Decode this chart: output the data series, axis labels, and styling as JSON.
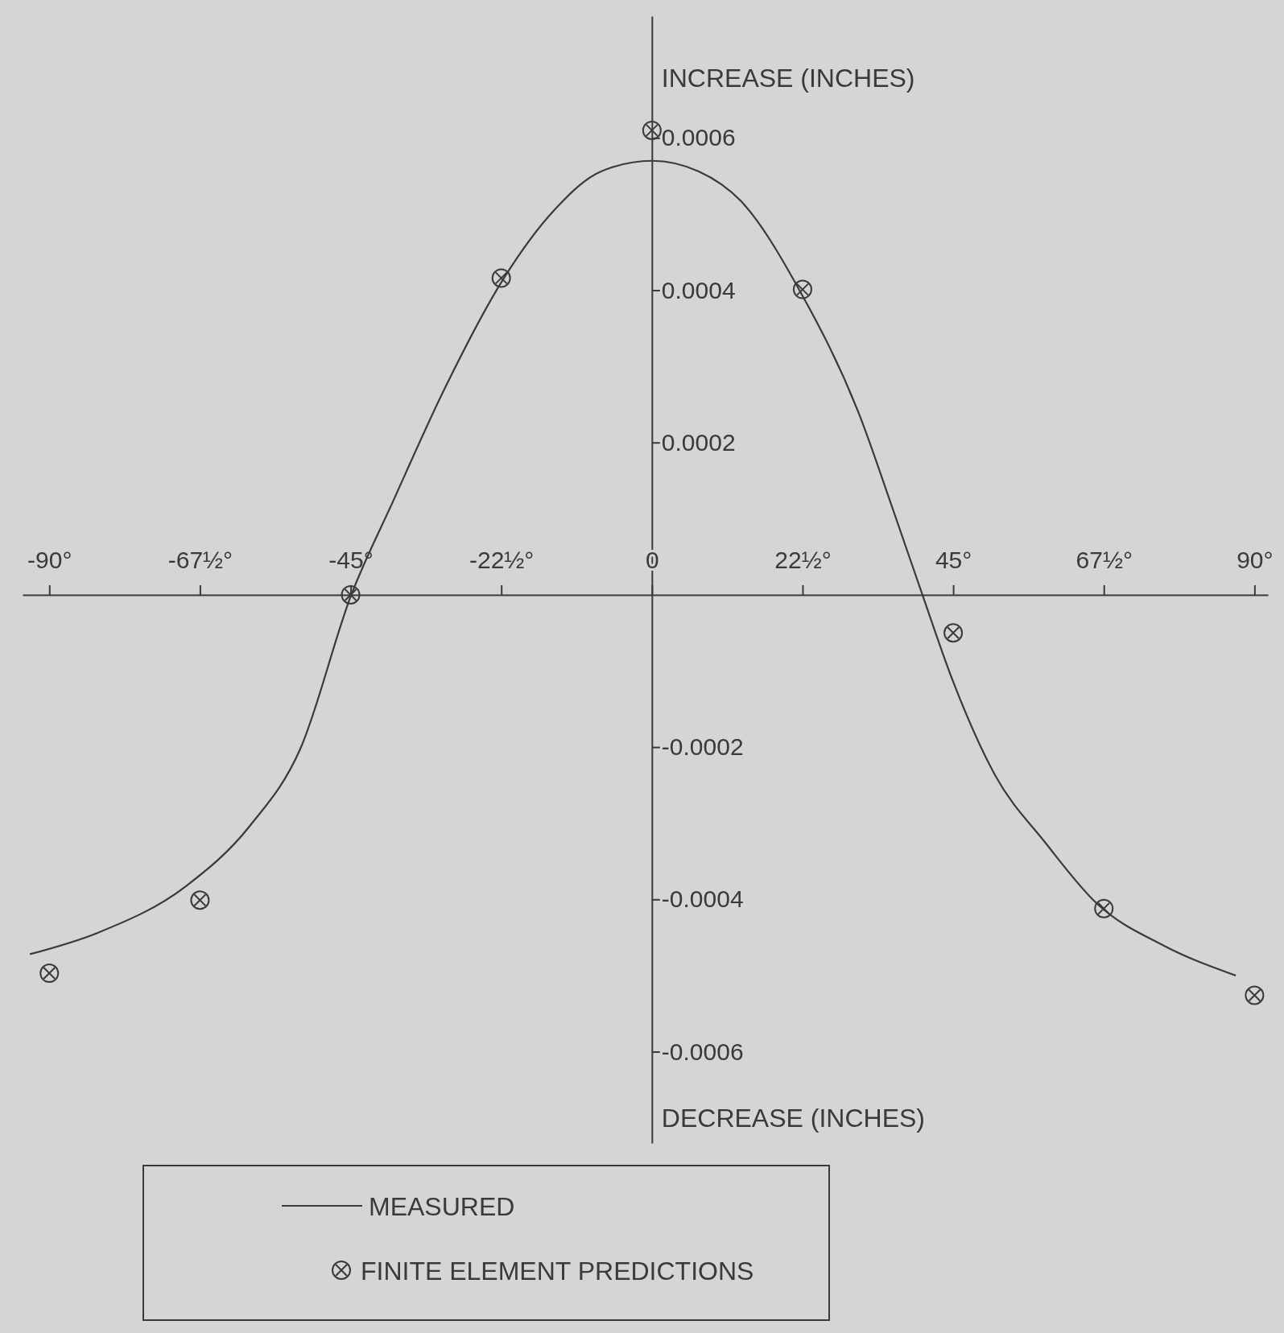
{
  "chart_data": {
    "type": "line",
    "ylabel": "INCREASE (INCHES)",
    "annotations": [
      "DECREASE (INCHES)"
    ],
    "xlim": [
      -94,
      92
    ],
    "ylim": [
      -0.00072,
      0.00076
    ],
    "xticks": [
      {
        "value": -90,
        "label": "-90°"
      },
      {
        "value": -67.5,
        "label": "-67½°"
      },
      {
        "value": -45,
        "label": "-45°"
      },
      {
        "value": -22.5,
        "label": "-22½°"
      },
      {
        "value": 0,
        "label": "0"
      },
      {
        "value": 22.5,
        "label": "22½°"
      },
      {
        "value": 45,
        "label": "45°"
      },
      {
        "value": 67.5,
        "label": "67½°"
      },
      {
        "value": 90,
        "label": "90°"
      }
    ],
    "yticks": [
      {
        "value": -0.0006,
        "label": "-0.0006"
      },
      {
        "value": -0.0004,
        "label": "-0.0004"
      },
      {
        "value": -0.0002,
        "label": "-0.0002"
      },
      {
        "value": 0.0002,
        "label": "0.0002"
      },
      {
        "value": 0.0004,
        "label": "0.0004"
      },
      {
        "value": 0.0006,
        "label": "0.0006"
      }
    ],
    "legend": "bottom",
    "series": [
      {
        "name": "MEASURED",
        "color": "#3a3a3a",
        "marker": "none",
        "line_style": "solid",
        "x": [
          -92.9,
          -82.8,
          -69.5,
          -60,
          -52.5,
          -44.9,
          -38.6,
          -31,
          -22.1,
          -14.5,
          -7.6,
          0,
          7,
          13.3,
          22.1,
          31,
          36,
          40.4,
          44.9,
          51.2,
          58.8,
          66.4,
          76.5,
          87.2
        ],
        "values": [
          -0.000472,
          -0.000444,
          -0.000382,
          -0.000303,
          -0.000202,
          0,
          0.000124,
          0.00027,
          0.000416,
          0.000506,
          0.000556,
          0.00057,
          0.000556,
          0.000517,
          0.000399,
          0.000236,
          0.000112,
          0,
          -0.000112,
          -0.000236,
          -0.000326,
          -0.000405,
          -0.000461,
          -0.0005
        ]
      },
      {
        "name": "FINITE ELEMENT PREDICTIONS",
        "type": "scatter",
        "color": "#3a3a3a",
        "marker": "circle",
        "x": [
          -90,
          -67.5,
          -45,
          -22.5,
          0,
          22.5,
          45,
          67.5,
          90
        ],
        "values": [
          -0.000497,
          -0.000401,
          0,
          0.000416,
          0.00061,
          0.000401,
          -5e-05,
          -0.000412,
          -0.000526
        ]
      }
    ]
  }
}
